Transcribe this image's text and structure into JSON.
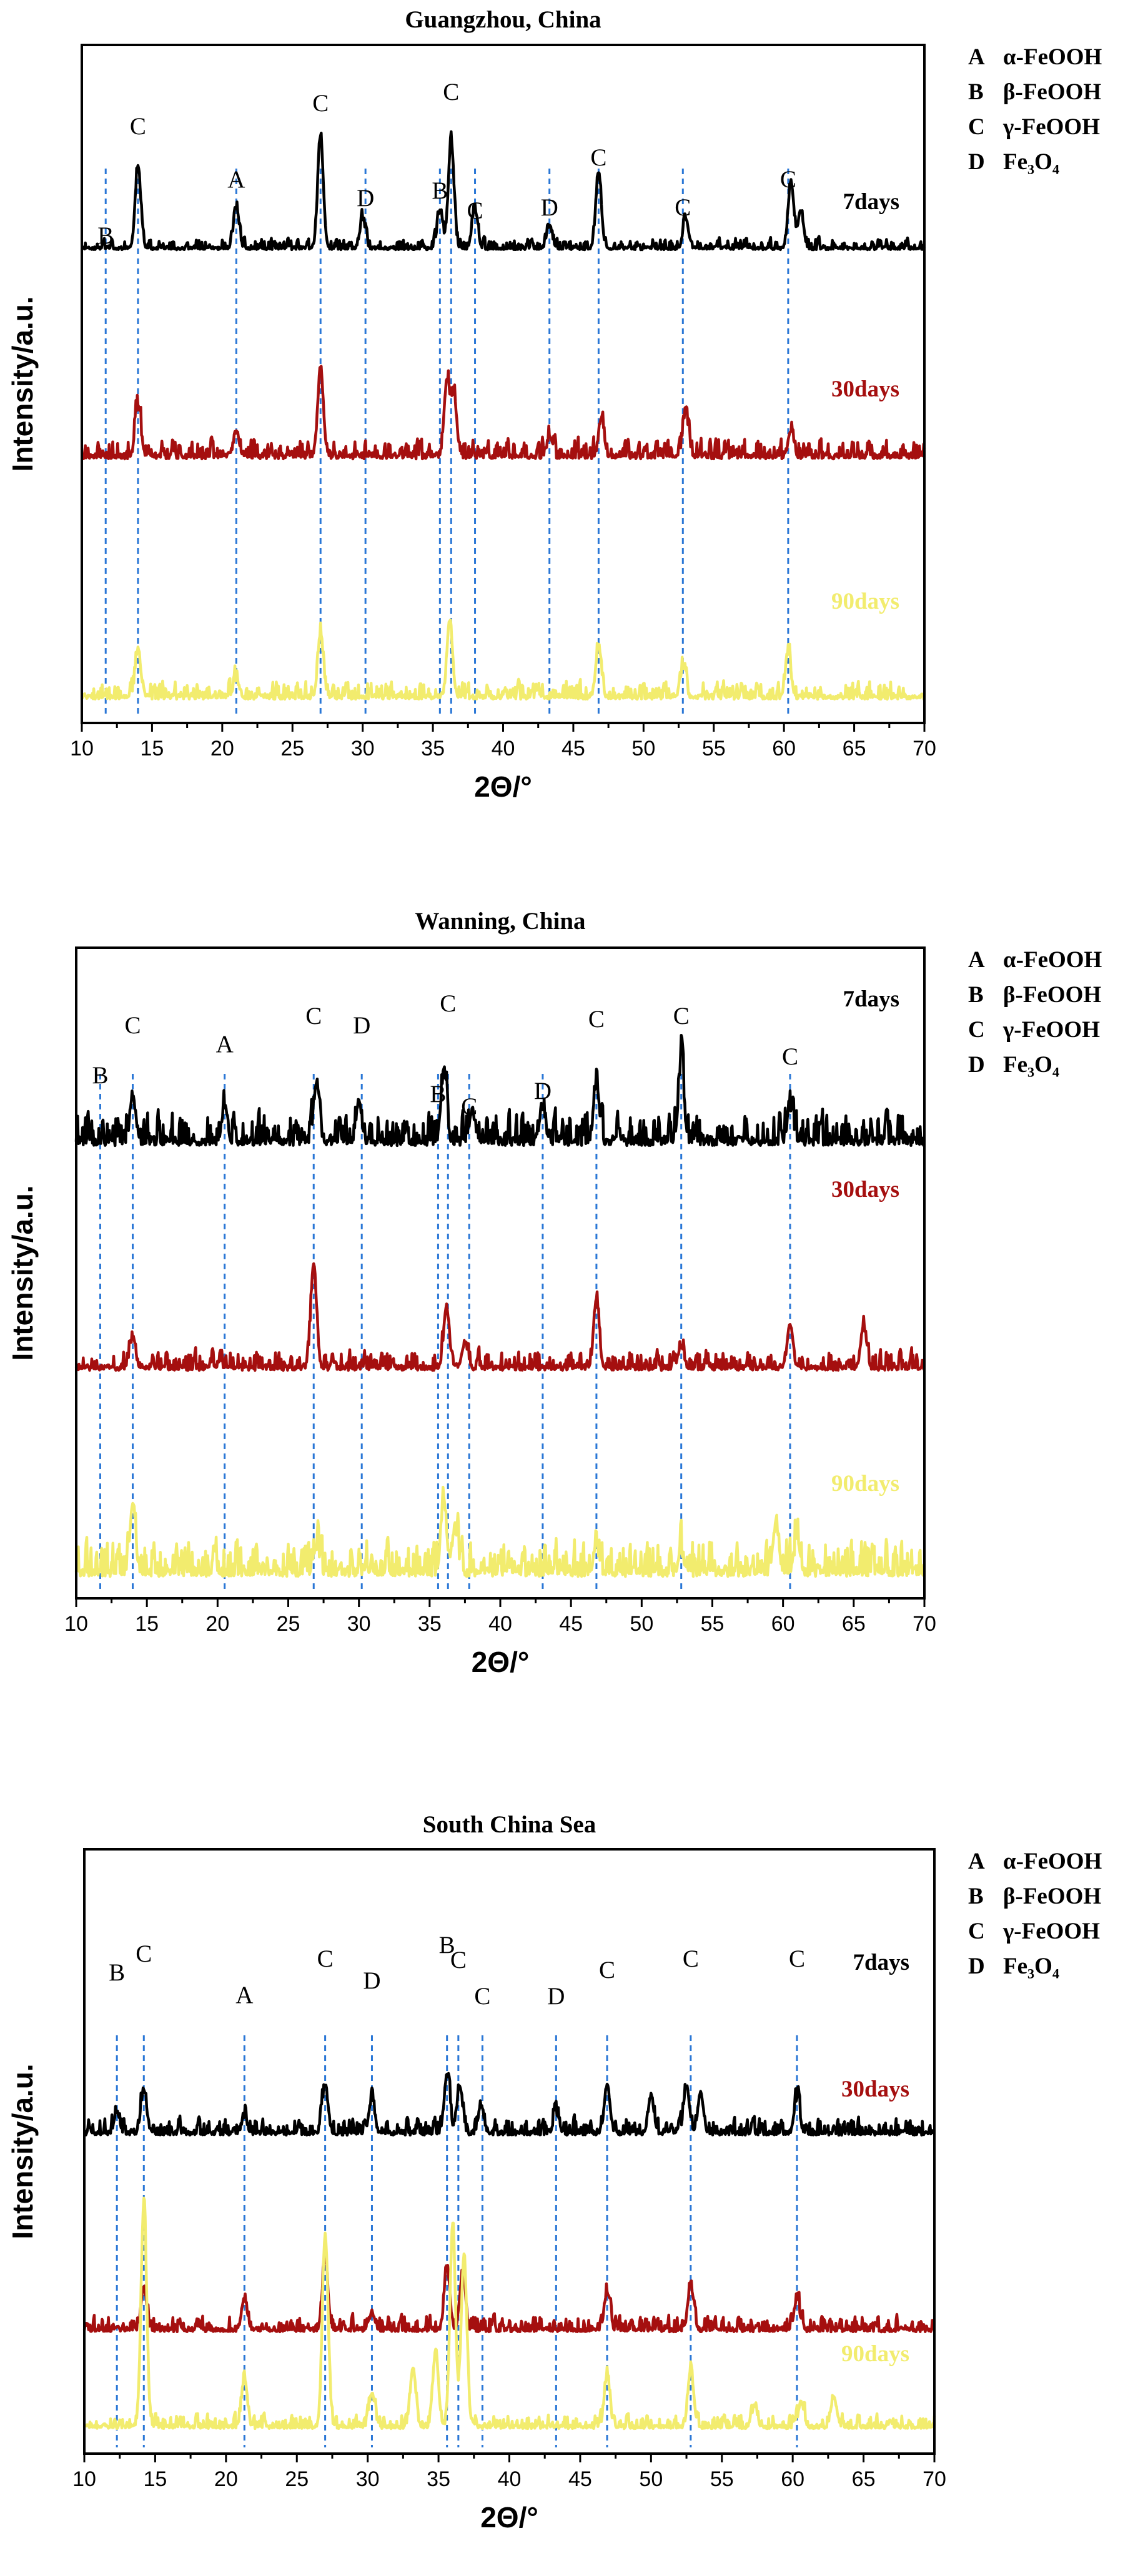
{
  "colors": {
    "7days": "#000000",
    "30days": "#a50f0f",
    "90days": "#f2ec6e",
    "dash": "#2a77d6",
    "axis": "#000000"
  },
  "legend": {
    "items": [
      {
        "key": "A",
        "label": "α-FeOOH"
      },
      {
        "key": "B",
        "label": "β-FeOOH"
      },
      {
        "key": "C",
        "label": "γ-FeOOH"
      },
      {
        "key": "D",
        "label": "Fe₃O₄"
      }
    ]
  },
  "chart_data": [
    {
      "type": "line",
      "title": "Guangzhou, China",
      "xlabel": "2Θ/°",
      "ylabel": "Intensity/a.u.",
      "xlim": [
        10,
        70
      ],
      "xticks": [
        10,
        15,
        20,
        25,
        30,
        35,
        40,
        45,
        50,
        55,
        60,
        65,
        70
      ],
      "series": [
        {
          "name": "7days",
          "seed": 11,
          "noise": 0.18,
          "peaks": [
            [
              14,
              2.2
            ],
            [
              21,
              1.1
            ],
            [
              27,
              3.0
            ],
            [
              30,
              0.8
            ],
            [
              35.5,
              1.0
            ],
            [
              36.3,
              2.9
            ],
            [
              38,
              1.0
            ],
            [
              43.3,
              0.6
            ],
            [
              46.8,
              2.0
            ],
            [
              53,
              0.8
            ],
            [
              60.5,
              1.8
            ],
            [
              61.2,
              1.0
            ]
          ]
        },
        {
          "name": "30days",
          "seed": 23,
          "noise": 0.32,
          "peaks": [
            [
              14,
              1.4
            ],
            [
              21,
              0.7
            ],
            [
              27,
              2.4
            ],
            [
              36,
              2.0
            ],
            [
              36.5,
              1.6
            ],
            [
              43.3,
              0.5
            ],
            [
              47,
              1.0
            ],
            [
              53,
              1.2
            ],
            [
              60.5,
              0.7
            ]
          ]
        },
        {
          "name": "90days",
          "seed": 37,
          "noise": 0.28,
          "peaks": [
            [
              14,
              1.3
            ],
            [
              21,
              0.5
            ],
            [
              27,
              1.7
            ],
            [
              36.2,
              2.0
            ],
            [
              46.8,
              1.4
            ],
            [
              52.8,
              0.8
            ],
            [
              60.3,
              1.2
            ]
          ]
        }
      ],
      "markers": [
        {
          "x": 11.7,
          "label": "B"
        },
        {
          "x": 14,
          "label": "C"
        },
        {
          "x": 21,
          "label": "A"
        },
        {
          "x": 27,
          "label": "C"
        },
        {
          "x": 30.2,
          "label": "D"
        },
        {
          "x": 35.5,
          "label": "B"
        },
        {
          "x": 36.3,
          "label": "C"
        },
        {
          "x": 38,
          "label": "C"
        },
        {
          "x": 43.3,
          "label": "D"
        },
        {
          "x": 46.8,
          "label": "C"
        },
        {
          "x": 52.8,
          "label": "C"
        },
        {
          "x": 60.3,
          "label": "C"
        }
      ]
    },
    {
      "type": "line",
      "title": "Wanning, China",
      "xlabel": "2Θ/°",
      "ylabel": "Intensity/a.u.",
      "xlim": [
        10,
        70
      ],
      "xticks": [
        10,
        15,
        20,
        25,
        30,
        35,
        40,
        45,
        50,
        55,
        60,
        65,
        70
      ],
      "series": [
        {
          "name": "7days",
          "seed": 41,
          "noise": 0.45,
          "peaks": [
            [
              14,
              1.0
            ],
            [
              20.5,
              0.8
            ],
            [
              27,
              1.4
            ],
            [
              30,
              0.9
            ],
            [
              36,
              1.6
            ],
            [
              38,
              0.7
            ],
            [
              43,
              0.8
            ],
            [
              46.8,
              1.4
            ],
            [
              52.8,
              1.8
            ],
            [
              60.5,
              0.8
            ]
          ]
        },
        {
          "name": "30days",
          "seed": 53,
          "noise": 0.28,
          "peaks": [
            [
              14,
              0.7
            ],
            [
              26.8,
              2.4
            ],
            [
              36.2,
              1.4
            ],
            [
              37.5,
              0.6
            ],
            [
              46.8,
              1.6
            ],
            [
              52.8,
              0.5
            ],
            [
              60.5,
              1.0
            ],
            [
              65.7,
              1.0
            ]
          ]
        },
        {
          "name": "90days",
          "seed": 61,
          "noise": 0.5,
          "peaks": [
            [
              14,
              1.6
            ],
            [
              27,
              0.6
            ],
            [
              36,
              1.7
            ],
            [
              36.8,
              1.0
            ],
            [
              46.8,
              0.6
            ],
            [
              52.8,
              0.5
            ],
            [
              59.5,
              1.1
            ],
            [
              61,
              0.8
            ]
          ]
        }
      ],
      "markers": [
        {
          "x": 11.7,
          "label": "B"
        },
        {
          "x": 14,
          "label": "C"
        },
        {
          "x": 20.5,
          "label": "A"
        },
        {
          "x": 26.8,
          "label": "C"
        },
        {
          "x": 30.2,
          "label": "D"
        },
        {
          "x": 35.6,
          "label": "B"
        },
        {
          "x": 36.3,
          "label": "C"
        },
        {
          "x": 37.8,
          "label": "C"
        },
        {
          "x": 43,
          "label": "D"
        },
        {
          "x": 46.8,
          "label": "C"
        },
        {
          "x": 52.8,
          "label": "C"
        },
        {
          "x": 60.5,
          "label": "C"
        }
      ]
    },
    {
      "type": "line",
      "title": "South China Sea",
      "xlabel": "2Θ/°",
      "ylabel": "Intensity/a.u.",
      "xlim": [
        10,
        70
      ],
      "xticks": [
        10,
        15,
        20,
        25,
        30,
        35,
        40,
        45,
        50,
        55,
        60,
        65,
        70
      ],
      "series": [
        {
          "name": "7days",
          "seed": 71,
          "noise": 0.3,
          "peaks": [
            [
              12.3,
              0.6
            ],
            [
              14.2,
              1.3
            ],
            [
              21.3,
              0.5
            ],
            [
              27,
              1.4
            ],
            [
              30.3,
              1.0
            ],
            [
              35.6,
              1.7
            ],
            [
              36.5,
              1.4
            ],
            [
              38,
              0.8
            ],
            [
              43.3,
              0.6
            ],
            [
              46.9,
              1.4
            ],
            [
              50,
              1.1
            ],
            [
              52.5,
              1.4
            ],
            [
              53.5,
              1.2
            ],
            [
              60.3,
              1.0
            ]
          ]
        },
        {
          "name": "30days",
          "seed": 83,
          "noise": 0.28,
          "peaks": [
            [
              14.2,
              1.2
            ],
            [
              21.3,
              0.9
            ],
            [
              27,
              2.0
            ],
            [
              30.3,
              0.5
            ],
            [
              35.6,
              1.8
            ],
            [
              36.7,
              1.7
            ],
            [
              46.9,
              1.1
            ],
            [
              52.8,
              1.3
            ],
            [
              60.3,
              0.9
            ]
          ]
        },
        {
          "name": "90days",
          "seed": 97,
          "noise": 0.24,
          "peaks": [
            [
              14.2,
              6.5
            ],
            [
              21.3,
              1.4
            ],
            [
              27,
              5.6
            ],
            [
              30.3,
              1.0
            ],
            [
              33.2,
              1.7
            ],
            [
              34.8,
              2.2
            ],
            [
              36,
              5.8
            ],
            [
              36.8,
              5.0
            ],
            [
              46.9,
              1.5
            ],
            [
              52.8,
              1.7
            ],
            [
              57.3,
              0.6
            ],
            [
              60.6,
              0.7
            ],
            [
              62.9,
              0.9
            ]
          ]
        }
      ],
      "markers": [
        {
          "x": 12.3,
          "label": "B"
        },
        {
          "x": 14.2,
          "label": "C"
        },
        {
          "x": 21.3,
          "label": "A"
        },
        {
          "x": 27,
          "label": "C"
        },
        {
          "x": 30.3,
          "label": "D"
        },
        {
          "x": 35.6,
          "label": "B"
        },
        {
          "x": 36.4,
          "label": "C"
        },
        {
          "x": 38.1,
          "label": "C"
        },
        {
          "x": 43.3,
          "label": "D"
        },
        {
          "x": 46.9,
          "label": "C"
        },
        {
          "x": 52.8,
          "label": "C"
        },
        {
          "x": 60.3,
          "label": "C"
        }
      ]
    }
  ]
}
